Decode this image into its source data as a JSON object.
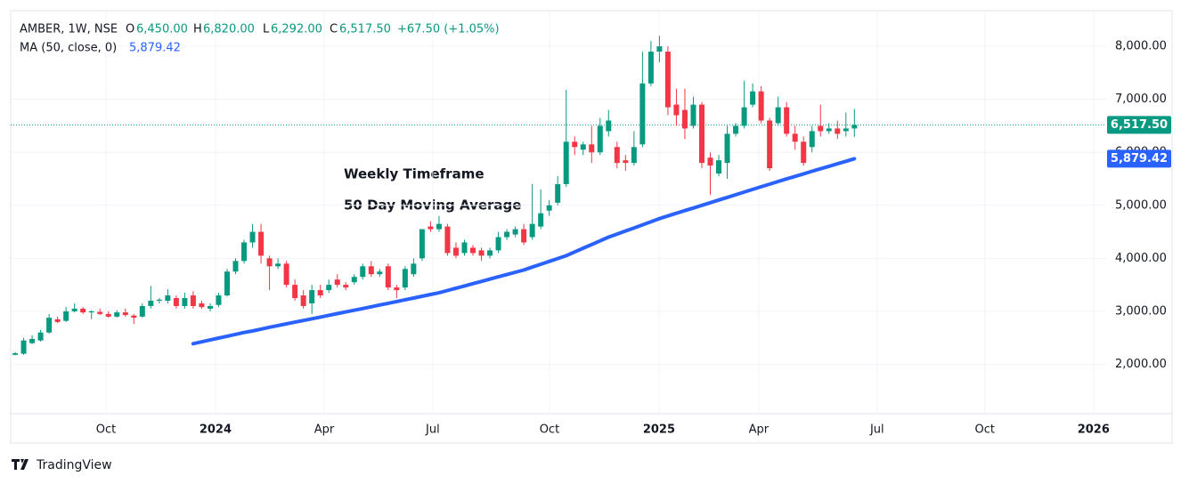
{
  "header": {
    "symbol": "AMBER, 1W, NSE",
    "open_label": "O",
    "open": "6,450.00",
    "high_label": "H",
    "high": "6,820.00",
    "low_label": "L",
    "low": "6,292.00",
    "close_label": "C",
    "close": "6,517.50",
    "change": "+67.50 (+1.05%)",
    "ma_label": "MA (50, close, 0)",
    "ma_value": "5,879.42"
  },
  "footer": {
    "brand": "TradingView"
  },
  "chart_data": {
    "type": "candlestick",
    "annotations": [
      "Weekly Timeframe",
      "50 Day Moving Average"
    ],
    "up_color": "#089981",
    "down_color": "#f23645",
    "open": [
      2180,
      2200,
      2400,
      2450,
      2600,
      2850,
      2820,
      3000,
      3050,
      2980,
      2990,
      2950,
      2900,
      2980,
      2920,
      2900,
      3100,
      3200,
      3200,
      3250,
      3100,
      3300,
      3150,
      3050,
      3120,
      3300,
      3750,
      3950,
      4300,
      4500,
      4000,
      3850,
      3900,
      3500,
      3300,
      3150,
      3400,
      3400,
      3600,
      3500,
      3550,
      3650,
      3850,
      3700,
      3850,
      3450,
      3450,
      3700,
      4000,
      4600,
      4550,
      4600,
      4200,
      4100,
      4200,
      4150,
      4050,
      4150,
      4400,
      4450,
      4550,
      4400,
      4600,
      4900,
      5050,
      5400,
      6200,
      6050,
      6150,
      6000,
      6400,
      6100,
      5850,
      5800,
      6150,
      7300,
      7900,
      7900,
      6900,
      6800,
      6500,
      6900,
      5900,
      5600,
      5800,
      6350,
      6500,
      6900,
      7150,
      6600,
      6550,
      6850,
      6350,
      6200,
      6100,
      6500,
      6400,
      6450,
      6400,
      6450
    ],
    "high": [
      2230,
      2500,
      2550,
      2650,
      2950,
      2900,
      3080,
      3150,
      3080,
      3020,
      3050,
      3000,
      3020,
      3050,
      2950,
      3150,
      3480,
      3250,
      3420,
      3300,
      3350,
      3380,
      3200,
      3150,
      3350,
      3800,
      4000,
      4350,
      4650,
      4650,
      4050,
      4000,
      3950,
      3600,
      3400,
      3500,
      3500,
      3600,
      3700,
      3550,
      3700,
      3900,
      3950,
      3800,
      3900,
      3500,
      3850,
      4000,
      4550,
      4700,
      4800,
      4650,
      4300,
      4350,
      4250,
      4200,
      4200,
      4500,
      4550,
      4600,
      4650,
      5400,
      5300,
      5100,
      5550,
      7180,
      6300,
      6200,
      6500,
      6650,
      6800,
      6200,
      5950,
      6400,
      7900,
      8100,
      8200,
      8000,
      7200,
      7200,
      7050,
      6950,
      6000,
      5950,
      6500,
      6550,
      7350,
      7300,
      7250,
      6650,
      7050,
      6950,
      6500,
      6300,
      6500,
      6900,
      6550,
      6600,
      6750,
      6820
    ],
    "low": [
      2170,
      2180,
      2380,
      2430,
      2580,
      2780,
      2800,
      2980,
      2950,
      2850,
      2930,
      2880,
      2880,
      2900,
      2760,
      2880,
      3050,
      3150,
      3150,
      3050,
      3050,
      3050,
      3050,
      3000,
      3080,
      3280,
      3700,
      3900,
      4200,
      3900,
      3400,
      3800,
      3450,
      3200,
      3050,
      2950,
      3250,
      3350,
      3450,
      3400,
      3500,
      3600,
      3650,
      3650,
      3400,
      3250,
      3400,
      3650,
      3950,
      4500,
      4500,
      4050,
      4000,
      4050,
      4050,
      3950,
      4000,
      4100,
      4350,
      4400,
      4250,
      4350,
      4550,
      4800,
      5000,
      5350,
      5950,
      5950,
      5800,
      5950,
      6300,
      5700,
      5650,
      5750,
      6100,
      7250,
      7700,
      6700,
      6500,
      6250,
      6450,
      5700,
      5200,
      5550,
      5500,
      6300,
      6450,
      6850,
      6550,
      5650,
      6500,
      6300,
      6050,
      5750,
      6000,
      6300,
      6350,
      6250,
      6300,
      6292
    ],
    "close": [
      2210,
      2450,
      2480,
      2600,
      2880,
      2800,
      3000,
      3050,
      2980,
      3000,
      2950,
      2900,
      2980,
      2930,
      2880,
      3100,
      3200,
      3220,
      3300,
      3100,
      3250,
      3100,
      3080,
      3100,
      3300,
      3750,
      3950,
      4300,
      4500,
      4050,
      3850,
      3900,
      3500,
      3250,
      3100,
      3400,
      3300,
      3500,
      3500,
      3450,
      3650,
      3850,
      3700,
      3750,
      3450,
      3400,
      3800,
      3900,
      4550,
      4550,
      4650,
      4100,
      4050,
      4300,
      4100,
      4050,
      4150,
      4400,
      4500,
      4550,
      4300,
      4650,
      4850,
      5000,
      5400,
      6200,
      6100,
      6150,
      6000,
      6500,
      6600,
      5800,
      5800,
      6100,
      7300,
      7900,
      8000,
      6850,
      6700,
      6450,
      6900,
      5800,
      5750,
      5850,
      6350,
      6500,
      6850,
      7150,
      6600,
      5700,
      6850,
      6350,
      6200,
      5800,
      6400,
      6400,
      6450,
      6350,
      6450,
      6517.5
    ],
    "ma": {
      "color": "#2962ff",
      "values": [
        null,
        null,
        null,
        null,
        null,
        null,
        null,
        null,
        null,
        null,
        null,
        null,
        null,
        null,
        null,
        null,
        null,
        null,
        null,
        null,
        null,
        2390,
        2425,
        2460,
        2495,
        2530,
        2565,
        2600,
        2630,
        2665,
        2700,
        2732,
        2764,
        2796,
        2828,
        2860,
        2892,
        2924,
        2956,
        2988,
        3020,
        3053,
        3086,
        3119,
        3152,
        3185,
        3218,
        3251,
        3284,
        3317,
        3350,
        3393,
        3436,
        3479,
        3522,
        3565,
        3608,
        3651,
        3694,
        3737,
        3780,
        3834,
        3888,
        3942,
        3996,
        4050,
        4120,
        4190,
        4260,
        4330,
        4400,
        4458,
        4516,
        4574,
        4632,
        4690,
        4750,
        4800,
        4850,
        4900,
        4950,
        5000,
        5050,
        5100,
        5150,
        5200,
        5250,
        5300,
        5350,
        5400,
        5450,
        5498,
        5546,
        5594,
        5642,
        5690,
        5737,
        5784,
        5831,
        5879.42
      ]
    },
    "xlim": [
      -0.53,
      128.7
    ],
    "xticks": [
      {
        "value": 10.71,
        "label": "Oct"
      },
      {
        "value": 23.63,
        "label": "2024"
      },
      {
        "value": 36.45,
        "label": "Apr"
      },
      {
        "value": 49.26,
        "label": "Jul"
      },
      {
        "value": 63.03,
        "label": "Oct"
      },
      {
        "value": 75.95,
        "label": "2025"
      },
      {
        "value": 87.71,
        "label": "Apr"
      },
      {
        "value": 101.68,
        "label": "Jul"
      },
      {
        "value": 114.39,
        "label": "Oct"
      },
      {
        "value": 127.21,
        "label": "2026"
      }
    ],
    "ylim": [
      1068,
      8673
    ],
    "yticks": [
      {
        "value": 2000,
        "label": "2,000.00"
      },
      {
        "value": 3000,
        "label": "3,000.00"
      },
      {
        "value": 4000,
        "label": "4,000.00"
      },
      {
        "value": 5000,
        "label": "5,000.00"
      },
      {
        "value": 6000,
        "label": "6,000.00"
      },
      {
        "value": 7000,
        "label": "7,000.00"
      },
      {
        "value": 8000,
        "label": "8,000.00"
      }
    ],
    "grid": true
  }
}
